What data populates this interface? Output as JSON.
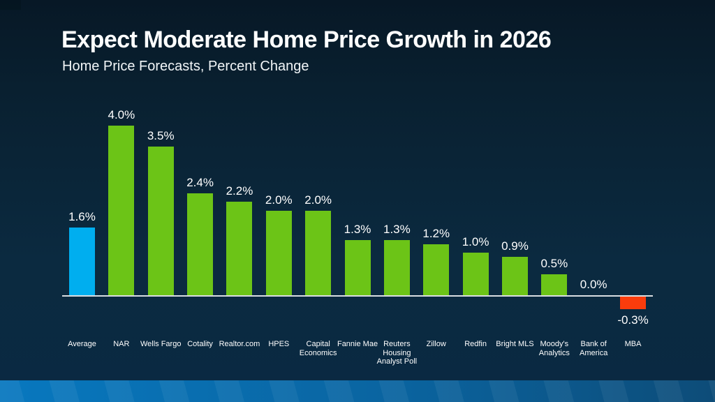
{
  "slide": {
    "title": "Expect Moderate Home Price Growth in 2026",
    "subtitle": "Home Price Forecasts, Percent Change"
  },
  "colors": {
    "background_top": "#071826",
    "background_bottom": "#0a2942",
    "bar_average": "#00aeef",
    "bar_positive": "#6cc417",
    "bar_negative": "#fa3c0c",
    "axis_line": "#d9dde1",
    "text": "#ffffff",
    "footer_left": "#0878bf",
    "footer_right": "#0d4c78"
  },
  "chart_data": {
    "type": "bar",
    "title": "Expect Moderate Home Price Growth in 2026",
    "subtitle": "Home Price Forecasts, Percent Change",
    "xlabel": "",
    "ylabel": "Home Price Forecast, Percent Change",
    "ylim": [
      -0.5,
      4.5
    ],
    "grid": false,
    "legend": "none",
    "categories": [
      "Average",
      "NAR",
      "Wells Fargo",
      "Cotality",
      "Realtor.com",
      "HPES",
      "Capital Economics",
      "Fannie Mae",
      "Reuters Housing Analyst Poll",
      "Zillow",
      "Redfin",
      "Bright MLS",
      "Moody's Analytics",
      "Bank of America",
      "MBA"
    ],
    "values": [
      1.6,
      4.0,
      3.5,
      2.4,
      2.2,
      2.0,
      2.0,
      1.3,
      1.3,
      1.2,
      1.0,
      0.9,
      0.5,
      0.0,
      -0.3
    ],
    "value_labels": [
      "1.6%",
      "4.0%",
      "3.5%",
      "2.4%",
      "2.2%",
      "2.0%",
      "2.0%",
      "1.3%",
      "1.3%",
      "1.2%",
      "1.0%",
      "0.9%",
      "0.5%",
      "0.0%",
      "-0.3%"
    ],
    "bar_roles": [
      "average",
      "positive",
      "positive",
      "positive",
      "positive",
      "positive",
      "positive",
      "positive",
      "positive",
      "positive",
      "positive",
      "positive",
      "positive",
      "zero",
      "negative"
    ]
  }
}
